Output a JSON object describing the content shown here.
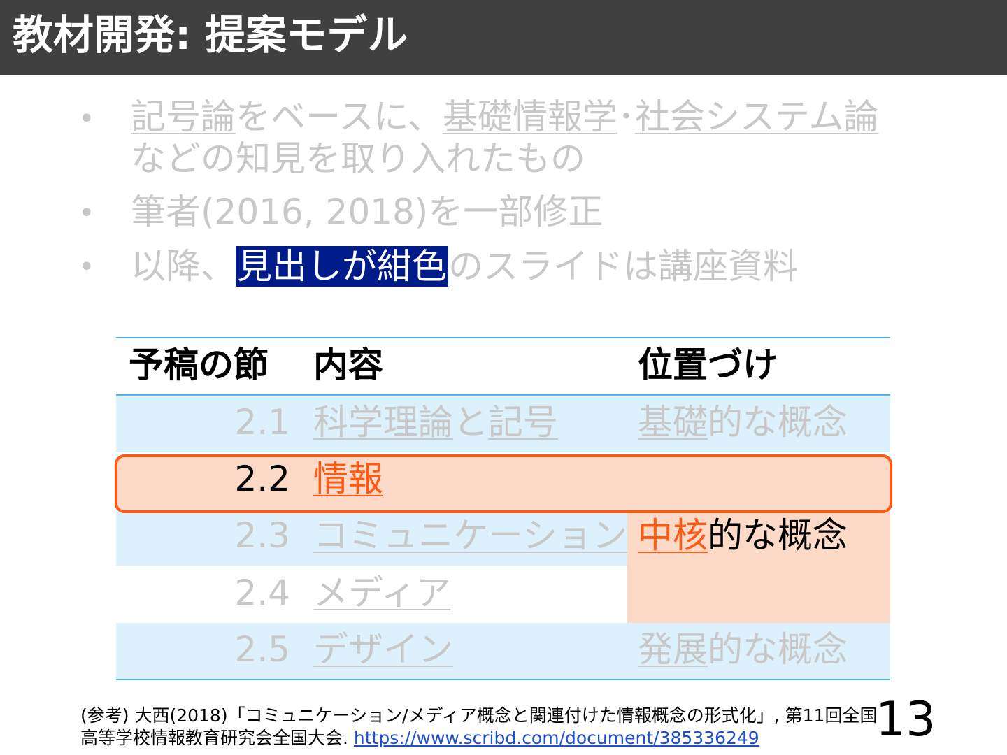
{
  "title": "教材開発: 提案モデル",
  "bullets": {
    "b1_a": "記号論",
    "b1_b": "をベースに、",
    "b1_c": "基礎情報学",
    "b1_d": "･",
    "b1_e": "社会システム論",
    "b1_line2": "などの知見を取り入れたもの",
    "b2": "筆者(2016, 2018)を一部修正",
    "b3_a": "以降、",
    "b3_b": "見出しが紺色",
    "b3_c": "のスライドは講座資料"
  },
  "table": {
    "headers": {
      "section": "予稿の節",
      "content": "内容",
      "position": "位置づけ"
    },
    "rows": [
      {
        "num": "2.1",
        "c1": "科学理論",
        "c2": "と",
        "c3": "記号"
      },
      {
        "num": "2.2",
        "c1": "情報"
      },
      {
        "num": "2.3",
        "c1": "コミュニケーション"
      },
      {
        "num": "2.4",
        "c1": "メディア"
      },
      {
        "num": "2.5",
        "c1": "デザイン"
      }
    ],
    "positions": {
      "basic_a": "基礎",
      "basic_b": "的な概念",
      "core_a": "中核",
      "core_b": "的な概念",
      "dev_a": "発展",
      "dev_b": "的な概念"
    }
  },
  "footnote": {
    "line1": "(参考) 大西(2018)「コミュニケーション/メディア概念と関連付けた情報概念の形式化」, 第11回全国",
    "line2": "高等学校情報教育研究会全国大会. ",
    "link": "https://www.scribd.com/document/385336249"
  },
  "page_number": "13",
  "colors": {
    "title_bg": "#404040",
    "highlight_navy": "#001c8a",
    "accent_orange": "#ff5a14",
    "row_blue": "#dcf1fb",
    "row_peach": "#fdd9c7",
    "rule_blue": "#4fb3e8"
  }
}
